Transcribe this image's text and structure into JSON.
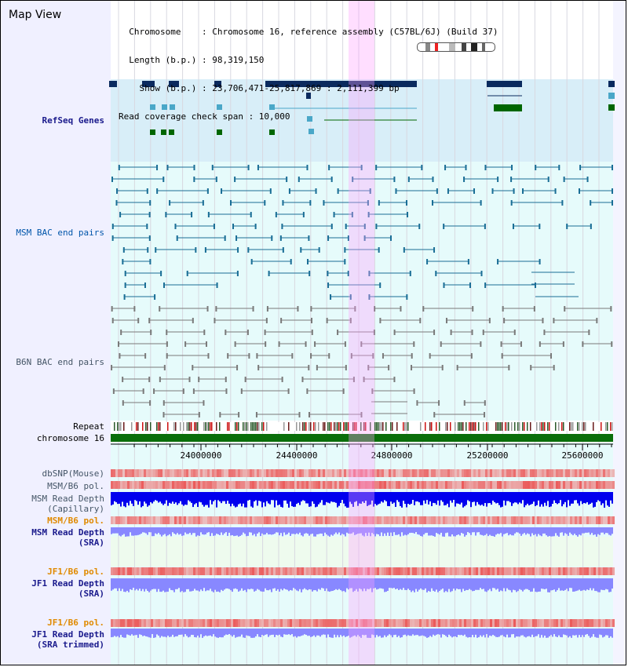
{
  "title": "Map View",
  "info": {
    "line1": "  Chromosome    : Chromosome 16, reference assembly (C57BL/6J) (Build 37)",
    "line2": "  Length (b.p.) : 98,319,150",
    "line3": "    Show (b.p.) : 23,706,471-25,817,869 : 2,111,399 bp",
    "line4": "Read coverage check span : 10,000"
  },
  "tracks": {
    "refseq": "RefSeq Genes",
    "msm_bac": "MSM BAC end pairs",
    "b6n_bac": "B6N BAC end pairs",
    "repeat": "Repeat",
    "chrom": "chromosome 16",
    "dbsnp": "dbSNP(Mouse)",
    "msm_b6_pol": "MSM/B6 pol.",
    "msm_depth_cap_1": "MSM Read Depth",
    "msm_depth_cap_2": "(Capillary)",
    "msm_b6_pol_sra": "MSM/B6 pol.",
    "msm_depth_sra_1": "MSM Read Depth",
    "msm_depth_sra_2": "(SRA)",
    "jf1_b6_pol": "JF1/B6 pol.",
    "jf1_depth_1": "JF1 Read Depth",
    "jf1_depth_2": "(SRA)",
    "jf1_b6_pol_trim": "JF1/B6 pol.",
    "jf1_depth_trim_1": "JF1 Read Depth",
    "jf1_depth_trim_2": "(SRA trimmed)"
  },
  "axis": {
    "ticks": [
      "24000000",
      "24400000",
      "24800000",
      "25200000",
      "25600000"
    ]
  },
  "colors": {
    "refseq_bg": "#d8eef8",
    "bac_bg": "#e6fbfb",
    "gene_dark": "#0a2a5e",
    "gene_light": "#4aa7c8",
    "gene_green": "#006600",
    "msm_line": "#1a6e96",
    "b6n_line": "#7a7a7a",
    "chrom": "#0a6e0a",
    "highlight": "#ff99ff",
    "depth": "#0000ee",
    "depth_light": "#8888ff"
  }
}
